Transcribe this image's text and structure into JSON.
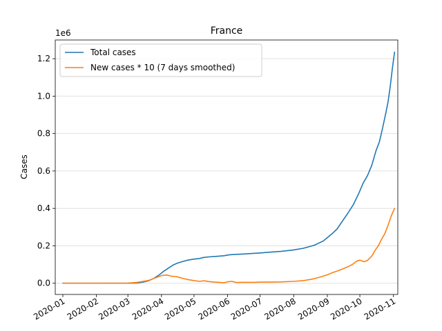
{
  "chart_data": {
    "type": "line",
    "title": "France",
    "xlabel": "",
    "ylabel": "Cases",
    "y_offset_label": "1e6",
    "y_scale_factor": 1000000,
    "ylim": [
      -0.06,
      1.3
    ],
    "xlim": [
      "2019-12-25",
      "2020-11-05"
    ],
    "grid": "horizontal",
    "legend_position": "top-left",
    "x_ticks": [
      "2020-01",
      "2020-02",
      "2020-03",
      "2020-04",
      "2020-05",
      "2020-06",
      "2020-07",
      "2020-08",
      "2020-09",
      "2020-10",
      "2020-11"
    ],
    "y_ticks": [
      "0.0",
      "0.2",
      "0.4",
      "0.6",
      "0.8",
      "1.0",
      "1.2"
    ],
    "series": [
      {
        "name": "Total cases",
        "color": "#1f77b4",
        "points": [
          [
            "2020-01-01",
            0.0
          ],
          [
            "2020-02-01",
            0.0
          ],
          [
            "2020-03-01",
            0.0001
          ],
          [
            "2020-03-10",
            0.0015
          ],
          [
            "2020-03-15",
            0.006
          ],
          [
            "2020-03-20",
            0.013
          ],
          [
            "2020-03-25",
            0.026
          ],
          [
            "2020-03-30",
            0.045
          ],
          [
            "2020-04-03",
            0.064
          ],
          [
            "2020-04-08",
            0.083
          ],
          [
            "2020-04-12",
            0.098
          ],
          [
            "2020-04-16",
            0.108
          ],
          [
            "2020-04-20",
            0.115
          ],
          [
            "2020-04-25",
            0.123
          ],
          [
            "2020-05-01",
            0.129
          ],
          [
            "2020-05-06",
            0.132
          ],
          [
            "2020-05-10",
            0.138
          ],
          [
            "2020-05-15",
            0.141
          ],
          [
            "2020-05-22",
            0.144
          ],
          [
            "2020-05-29",
            0.147
          ],
          [
            "2020-06-01",
            0.151
          ],
          [
            "2020-06-05",
            0.153
          ],
          [
            "2020-06-15",
            0.156
          ],
          [
            "2020-07-01",
            0.162
          ],
          [
            "2020-07-10",
            0.166
          ],
          [
            "2020-07-20",
            0.17
          ],
          [
            "2020-08-01",
            0.178
          ],
          [
            "2020-08-10",
            0.187
          ],
          [
            "2020-08-20",
            0.203
          ],
          [
            "2020-08-28",
            0.225
          ],
          [
            "2020-09-05",
            0.263
          ],
          [
            "2020-09-10",
            0.29
          ],
          [
            "2020-09-15",
            0.332
          ],
          [
            "2020-09-20",
            0.375
          ],
          [
            "2020-09-25",
            0.42
          ],
          [
            "2020-09-30",
            0.48
          ],
          [
            "2020-10-04",
            0.535
          ],
          [
            "2020-10-08",
            0.575
          ],
          [
            "2020-10-12",
            0.63
          ],
          [
            "2020-10-16",
            0.71
          ],
          [
            "2020-10-19",
            0.755
          ],
          [
            "2020-10-22",
            0.83
          ],
          [
            "2020-10-25",
            0.91
          ],
          [
            "2020-10-27",
            0.97
          ],
          [
            "2020-10-29",
            1.05
          ],
          [
            "2020-10-31",
            1.15
          ],
          [
            "2020-11-02",
            1.235
          ]
        ]
      },
      {
        "name": "New cases * 10 (7 days smoothed)",
        "color": "#ff7f0e",
        "points": [
          [
            "2020-01-01",
            0.0
          ],
          [
            "2020-02-01",
            0.0
          ],
          [
            "2020-03-01",
            0.0005
          ],
          [
            "2020-03-10",
            0.005
          ],
          [
            "2020-03-20",
            0.015
          ],
          [
            "2020-03-28",
            0.032
          ],
          [
            "2020-04-02",
            0.042
          ],
          [
            "2020-04-06",
            0.044
          ],
          [
            "2020-04-10",
            0.038
          ],
          [
            "2020-04-15",
            0.035
          ],
          [
            "2020-04-20",
            0.027
          ],
          [
            "2020-04-25",
            0.02
          ],
          [
            "2020-05-01",
            0.014
          ],
          [
            "2020-05-06",
            0.01
          ],
          [
            "2020-05-10",
            0.013
          ],
          [
            "2020-05-15",
            0.009
          ],
          [
            "2020-05-20",
            0.006
          ],
          [
            "2020-05-25",
            0.004
          ],
          [
            "2020-05-29",
            0.003
          ],
          [
            "2020-06-01",
            0.008
          ],
          [
            "2020-06-05",
            0.01
          ],
          [
            "2020-06-09",
            0.004
          ],
          [
            "2020-06-15",
            0.005
          ],
          [
            "2020-06-25",
            0.005
          ],
          [
            "2020-07-01",
            0.006
          ],
          [
            "2020-07-10",
            0.006
          ],
          [
            "2020-07-20",
            0.007
          ],
          [
            "2020-08-01",
            0.01
          ],
          [
            "2020-08-10",
            0.014
          ],
          [
            "2020-08-18",
            0.022
          ],
          [
            "2020-08-25",
            0.032
          ],
          [
            "2020-09-01",
            0.045
          ],
          [
            "2020-09-05",
            0.055
          ],
          [
            "2020-09-10",
            0.065
          ],
          [
            "2020-09-15",
            0.076
          ],
          [
            "2020-09-20",
            0.088
          ],
          [
            "2020-09-24",
            0.1
          ],
          [
            "2020-09-28",
            0.118
          ],
          [
            "2020-10-01",
            0.123
          ],
          [
            "2020-10-05",
            0.115
          ],
          [
            "2020-10-08",
            0.122
          ],
          [
            "2020-10-12",
            0.145
          ],
          [
            "2020-10-15",
            0.175
          ],
          [
            "2020-10-18",
            0.2
          ],
          [
            "2020-10-21",
            0.235
          ],
          [
            "2020-10-24",
            0.265
          ],
          [
            "2020-10-27",
            0.31
          ],
          [
            "2020-10-30",
            0.36
          ],
          [
            "2020-11-02",
            0.4
          ]
        ]
      }
    ]
  }
}
